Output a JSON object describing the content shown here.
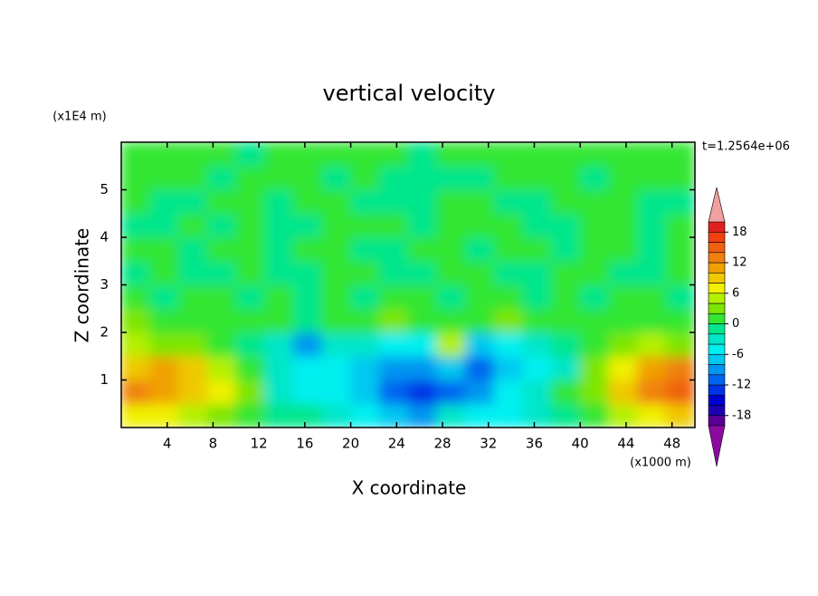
{
  "chart_data": {
    "type": "contour",
    "title": "vertical velocity",
    "xlabel": "X coordinate",
    "ylabel": "Z coordinate",
    "xunit": "(x1000 m)",
    "yunit": "(x1E4 m)",
    "annotation": "t=1.2564e+06",
    "xlim": [
      0,
      50
    ],
    "ylim": [
      0,
      6
    ],
    "xticks": [
      4,
      8,
      12,
      16,
      20,
      24,
      28,
      32,
      36,
      40,
      44,
      48
    ],
    "yticks": [
      1,
      2,
      3,
      4,
      5
    ],
    "x": [
      1.25,
      3.75,
      6.25,
      8.75,
      11.25,
      13.75,
      16.25,
      18.75,
      21.25,
      23.75,
      26.25,
      28.75,
      31.25,
      33.75,
      36.25,
      38.75,
      41.25,
      43.75,
      46.25,
      48.75
    ],
    "y": [
      0.25,
      0.75,
      1.25,
      1.75,
      2.25,
      2.75,
      3.25,
      3.75,
      4.25,
      4.75,
      5.25,
      5.75
    ],
    "z": [
      [
        7,
        6,
        5,
        3,
        1,
        -1,
        -2,
        -3,
        -5,
        -8,
        -9,
        -3,
        -6,
        -5,
        -3,
        -2,
        1,
        4,
        7,
        8
      ],
      [
        12,
        10,
        9,
        6,
        2,
        -3,
        -5,
        -5,
        -8,
        -12,
        -13,
        -11,
        -9,
        -6,
        -3,
        0,
        2,
        8,
        13,
        15
      ],
      [
        9,
        10,
        9,
        5,
        1,
        -4,
        -5,
        -5,
        -7,
        -10,
        -10,
        -8,
        -12,
        -8,
        -5,
        -3,
        2,
        7,
        11,
        12
      ],
      [
        4,
        3,
        3,
        1,
        -1,
        -4,
        -9,
        -4,
        -4,
        -5,
        -5,
        5,
        -7,
        -5,
        -3,
        -1,
        1,
        3,
        4,
        3
      ],
      [
        3,
        1,
        1,
        1,
        0,
        1,
        -1,
        1,
        1,
        3,
        1,
        1,
        1,
        3,
        1,
        1,
        1,
        1,
        1,
        1
      ],
      [
        1,
        -1,
        1,
        1,
        -1,
        1,
        -1,
        1,
        -1,
        1,
        1,
        -1,
        1,
        1,
        -1,
        1,
        -1,
        1,
        1,
        -1
      ],
      [
        -1,
        1,
        -1,
        -1,
        1,
        -1,
        -1,
        1,
        1,
        -1,
        -1,
        1,
        1,
        -1,
        -1,
        1,
        1,
        -1,
        -1,
        1
      ],
      [
        1,
        1,
        -1,
        1,
        1,
        -1,
        1,
        1,
        -1,
        -1,
        1,
        1,
        -1,
        1,
        1,
        -1,
        1,
        1,
        -1,
        1
      ],
      [
        -1,
        -1,
        1,
        -1,
        1,
        -1,
        -1,
        1,
        1,
        1,
        -1,
        1,
        1,
        1,
        -1,
        -1,
        1,
        1,
        -1,
        1
      ],
      [
        1,
        -1,
        -1,
        1,
        1,
        -1,
        1,
        1,
        -1,
        -1,
        -1,
        1,
        1,
        -1,
        -1,
        1,
        1,
        1,
        -1,
        -1
      ],
      [
        1,
        1,
        1,
        -1,
        1,
        1,
        1,
        -1,
        1,
        -1,
        -1,
        -1,
        -1,
        1,
        1,
        1,
        -1,
        1,
        1,
        1
      ],
      [
        1,
        1,
        1,
        1,
        -1,
        1,
        1,
        1,
        1,
        1,
        -1,
        1,
        1,
        1,
        1,
        1,
        1,
        1,
        1,
        1
      ]
    ],
    "levels": [
      -20,
      -18,
      -16,
      -14,
      -12,
      -10,
      -8,
      -6,
      -4,
      -2,
      0,
      2,
      4,
      6,
      8,
      10,
      12,
      14,
      16,
      18,
      20
    ],
    "colors": [
      "#8c0aa0",
      "#5a0096",
      "#1e00b4",
      "#0000d2",
      "#0032e6",
      "#0064f0",
      "#0096f0",
      "#00c8f0",
      "#00f0f0",
      "#00e6c8",
      "#00e68c",
      "#32e632",
      "#7de600",
      "#b4f000",
      "#f0f000",
      "#f0c800",
      "#f0a000",
      "#f08010",
      "#f06010",
      "#f04010",
      "#e0201f",
      "#f0a0a0"
    ],
    "colorbar_ticks": [
      -18,
      -12,
      -6,
      0,
      6,
      12,
      18
    ]
  }
}
